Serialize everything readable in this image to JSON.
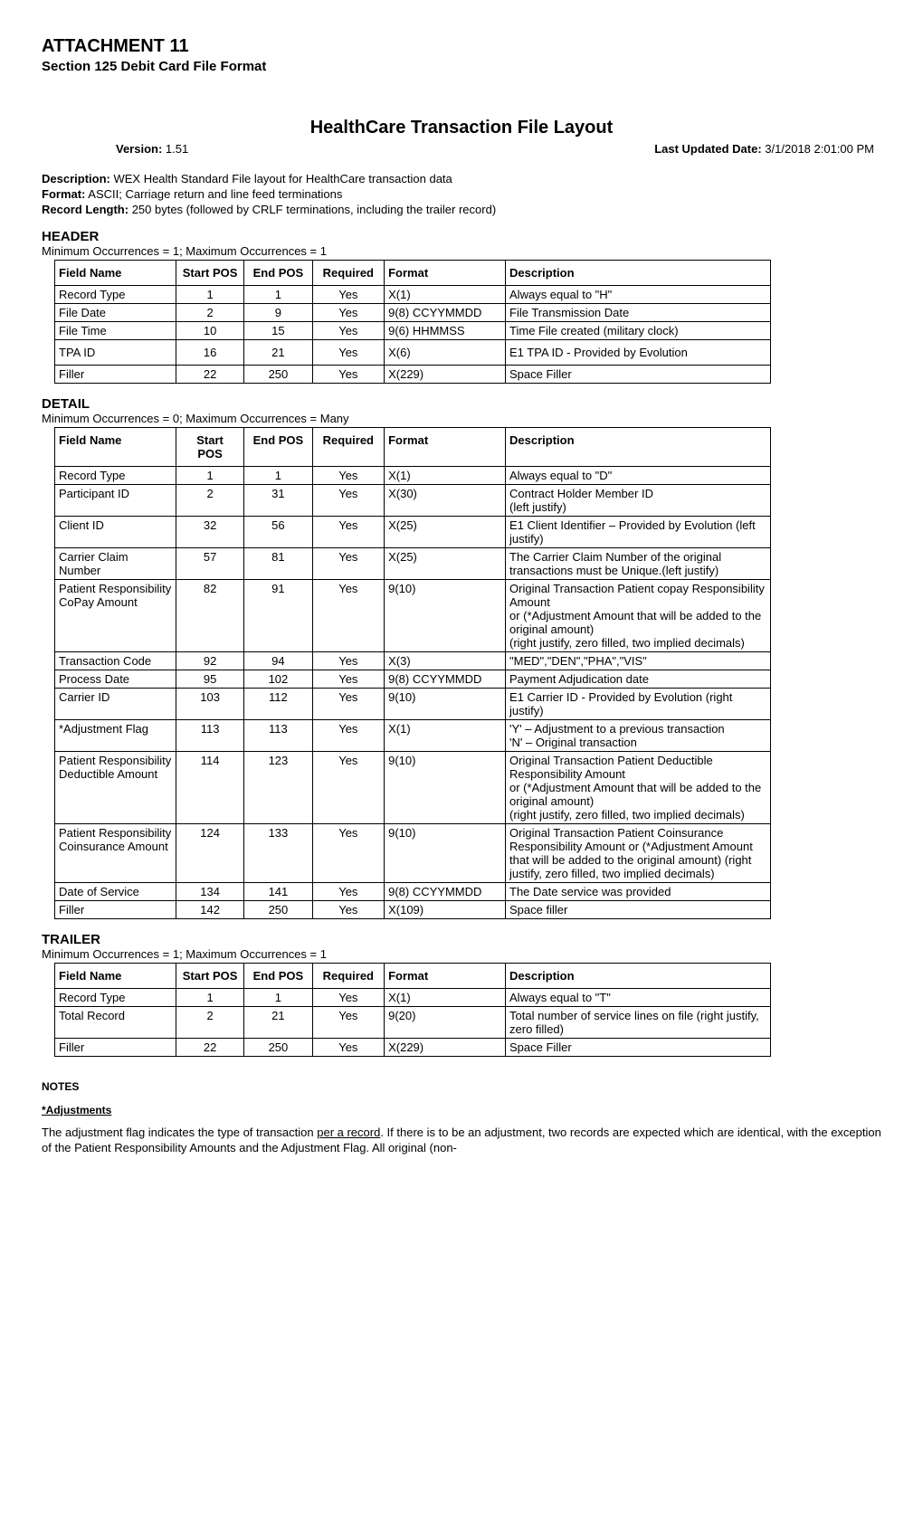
{
  "attachment_title": "ATTACHMENT 11",
  "attachment_subtitle": "Section 125 Debit Card File Format",
  "main_title": "HealthCare Transaction File Layout",
  "version_label": "Version:",
  "version_value": "1.51",
  "updated_label": "Last Updated Date:",
  "updated_value": "3/1/2018 2:01:00 PM",
  "meta": {
    "description_label": "Description:",
    "description_value": "WEX Health Standard File layout for HealthCare transaction data",
    "format_label": "Format:",
    "format_value": "ASCII; Carriage return and line feed terminations",
    "record_length_label": "Record Length:",
    "record_length_value": "250 bytes (followed by CRLF terminations, including the trailer record)"
  },
  "columns": {
    "field_name": "Field Name",
    "start_pos": "Start POS",
    "start_pos_2line": "Start\nPOS",
    "end_pos": "End POS",
    "required": "Required",
    "format": "Format",
    "description": "Description"
  },
  "header_section": {
    "label": "HEADER",
    "occ": "Minimum Occurrences = 1; Maximum Occurrences = 1",
    "rows": [
      {
        "fn": "Record Type",
        "sp": "1",
        "ep": "1",
        "rq": "Yes",
        "fm": "X(1)",
        "de": "Always equal to \"H\""
      },
      {
        "fn": "File Date",
        "sp": "2",
        "ep": "9",
        "rq": "Yes",
        "fm": "9(8) CCYYMMDD",
        "de": "File Transmission Date"
      },
      {
        "fn": "File Time",
        "sp": "10",
        "ep": "15",
        "rq": "Yes",
        "fm": "9(6) HHMMSS",
        "de": "Time File created (military clock)"
      },
      {
        "fn": "TPA ID",
        "sp": "16",
        "ep": "21",
        "rq": "Yes",
        "fm": "X(6)",
        "de": "E1 TPA ID - Provided by Evolution",
        "tall": true
      },
      {
        "fn": "Filler",
        "sp": "22",
        "ep": "250",
        "rq": "Yes",
        "fm": "X(229)",
        "de": "Space Filler"
      }
    ]
  },
  "detail_section": {
    "label": "DETAIL",
    "occ": "Minimum Occurrences = 0; Maximum Occurrences = Many",
    "rows": [
      {
        "fn": "Record Type",
        "sp": "1",
        "ep": "1",
        "rq": "Yes",
        "fm": "X(1)",
        "de": "Always equal to \"D\""
      },
      {
        "fn": "Participant ID",
        "sp": "2",
        "ep": "31",
        "rq": "Yes",
        "fm": "X(30)",
        "de": "Contract Holder Member ID\n(left justify)"
      },
      {
        "fn": "Client ID",
        "sp": "32",
        "ep": "56",
        "rq": "Yes",
        "fm": "X(25)",
        "de": "E1 Client Identifier – Provided by Evolution  (left justify)"
      },
      {
        "fn": "Carrier Claim Number",
        "sp": "57",
        "ep": "81",
        "rq": "Yes",
        "fm": "X(25)",
        "de": "The Carrier Claim Number of the original transactions must be Unique.(left justify)"
      },
      {
        "fn": "Patient Responsibility CoPay Amount",
        "sp": "82",
        "ep": "91",
        "rq": "Yes",
        "fm": "9(10)",
        "de": "Original Transaction Patient copay Responsibility Amount\nor (*Adjustment Amount that will be added to the original amount)\n(right justify, zero filled, two implied decimals)"
      },
      {
        "fn": "Transaction Code",
        "sp": "92",
        "ep": "94",
        "rq": "Yes",
        "fm": "X(3)",
        "de": "\"MED\",\"DEN\",\"PHA\",\"VIS\""
      },
      {
        "fn": "Process Date",
        "sp": "95",
        "ep": "102",
        "rq": "Yes",
        "fm": "9(8) CCYYMMDD",
        "de": "Payment Adjudication date"
      },
      {
        "fn": "Carrier ID",
        "sp": "103",
        "ep": "112",
        "rq": "Yes",
        "fm": "9(10)",
        "de": "E1 Carrier ID - Provided by Evolution (right justify)"
      },
      {
        "fn": "*Adjustment Flag",
        "sp": "113",
        "ep": "113",
        "rq": "Yes",
        "fm": "X(1)",
        "de": "'Y' – Adjustment to a previous transaction\n'N' – Original transaction"
      },
      {
        "fn": "Patient Responsibility Deductible Amount",
        "sp": "114",
        "ep": "123",
        "rq": "Yes",
        "fm": "9(10)",
        "de": "Original Transaction Patient Deductible Responsibility Amount\nor (*Adjustment Amount that will be added to the original amount)\n(right justify, zero filled, two implied decimals)"
      },
      {
        "fn": "Patient Responsibility Coinsurance Amount",
        "sp": "124",
        "ep": "133",
        "rq": "Yes",
        "fm": "9(10)",
        "de": "Original Transaction Patient Coinsurance Responsibility Amount or (*Adjustment Amount that will be added to the original amount) (right justify, zero filled, two implied decimals)"
      },
      {
        "fn": "Date of Service",
        "sp": "134",
        "ep": "141",
        "rq": "Yes",
        "fm": "9(8) CCYYMMDD",
        "de": "The Date service was provided"
      },
      {
        "fn": "Filler",
        "sp": "142",
        "ep": "250",
        "rq": "Yes",
        "fm": "X(109)",
        "de": "Space filler"
      }
    ]
  },
  "trailer_section": {
    "label": "TRAILER",
    "occ": "Minimum Occurrences = 1; Maximum Occurrences = 1",
    "rows": [
      {
        "fn": "Record Type",
        "sp": "1",
        "ep": "1",
        "rq": "Yes",
        "fm": "X(1)",
        "de": "Always equal to \"T\""
      },
      {
        "fn": "Total Record",
        "sp": "2",
        "ep": "21",
        "rq": "Yes",
        "fm": "9(20)",
        "de": "Total number of service lines on file (right justify, zero filled)"
      },
      {
        "fn": "Filler",
        "sp": "22",
        "ep": "250",
        "rq": "Yes",
        "fm": "X(229)",
        "de": "Space Filler"
      }
    ]
  },
  "notes": {
    "label": "NOTES",
    "adj_label": "*Adjustments",
    "para_pre": "The adjustment flag indicates the type of transaction ",
    "para_under": "per a record",
    "para_post": ". If there is to be an adjustment, two records are expected which are identical, with the exception of the Patient Responsibility Amounts and the Adjustment Flag. All original (non-"
  }
}
